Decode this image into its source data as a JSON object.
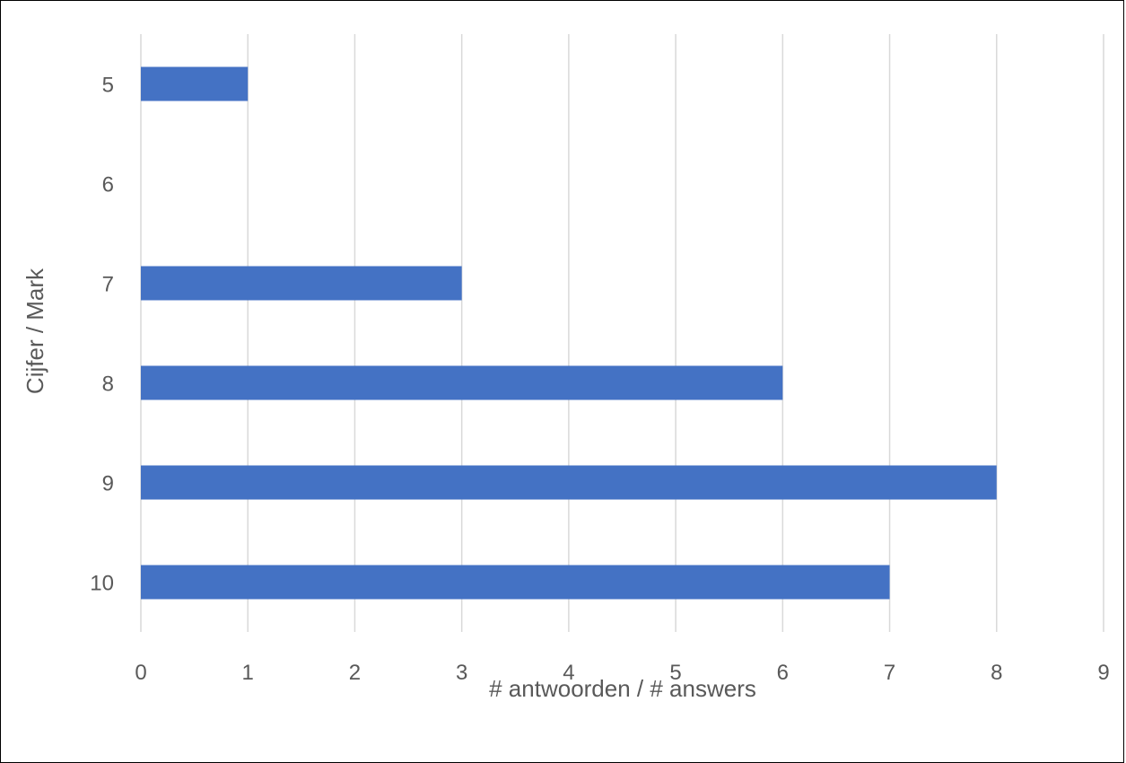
{
  "chart_data": {
    "type": "bar",
    "orientation": "horizontal",
    "title": "",
    "xlabel": "# antwoorden / # answers",
    "ylabel": "Cijfer / Mark",
    "categories": [
      "5",
      "6",
      "7",
      "8",
      "9",
      "10"
    ],
    "series": [
      {
        "values": [
          1,
          0,
          3,
          6,
          8,
          7
        ]
      }
    ],
    "xlim": [
      0,
      9
    ],
    "xticks": [
      "0",
      "1",
      "2",
      "3",
      "4",
      "5",
      "6",
      "7",
      "8",
      "9"
    ],
    "grid": true,
    "legend": "none",
    "colors": {
      "bar": "#4472C4",
      "grid": "#D9D9D9",
      "text": "#595959"
    }
  }
}
